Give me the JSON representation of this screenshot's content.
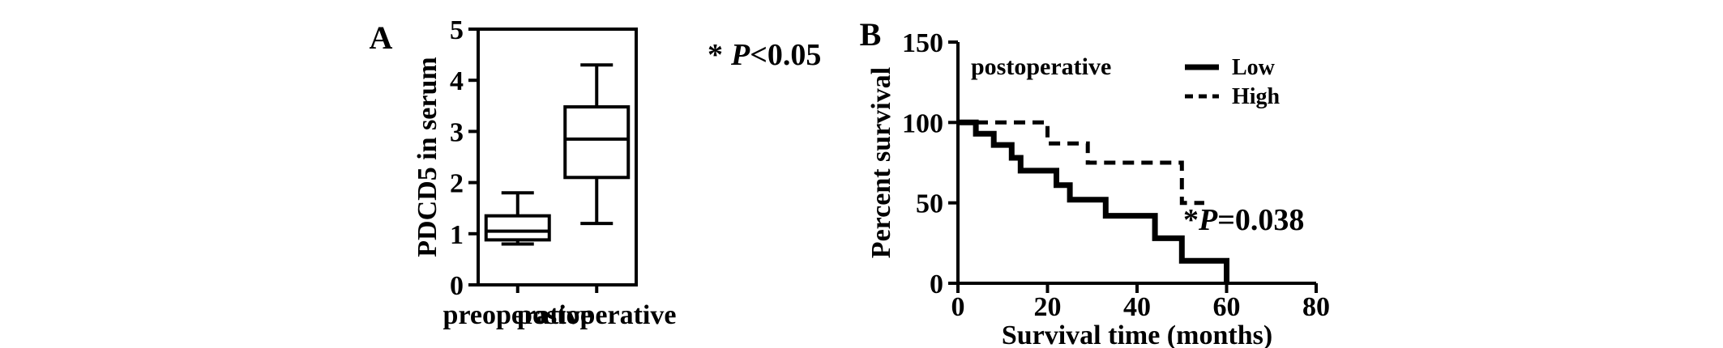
{
  "chart_data": [
    {
      "panel_label": "A",
      "type": "box",
      "ylabel": "PDCD5 in serum",
      "ylim": [
        0,
        5
      ],
      "yticks": [
        "0",
        "1",
        "2",
        "3",
        "4",
        "5"
      ],
      "categories": [
        "preoperative",
        "postoperative"
      ],
      "boxes": [
        {
          "category": "preoperative",
          "whisker_low": 0.8,
          "q1": 0.88,
          "median": 1.05,
          "q3": 1.35,
          "whisker_high": 1.8
        },
        {
          "category": "postoperative",
          "whisker_low": 1.2,
          "q1": 2.1,
          "median": 2.85,
          "q3": 3.48,
          "whisker_high": 4.3
        }
      ],
      "annotation": {
        "star": "*",
        "p_symbol": "P",
        "text": "<0.05"
      }
    },
    {
      "panel_label": "B",
      "type": "line",
      "subtype": "kaplan-meier",
      "note": "postoperative",
      "xlabel": "Survival time (months)",
      "ylabel": "Percent survival",
      "xlim": [
        0,
        80
      ],
      "ylim": [
        0,
        150
      ],
      "xticks": [
        "0",
        "20",
        "40",
        "60",
        "80"
      ],
      "yticks": [
        "0",
        "50",
        "100",
        "150"
      ],
      "legend_position": "top-right",
      "series": [
        {
          "name": "Low",
          "style": "solid",
          "points": [
            [
              0,
              100
            ],
            [
              4,
              100
            ],
            [
              4,
              93
            ],
            [
              8,
              93
            ],
            [
              8,
              86
            ],
            [
              12,
              86
            ],
            [
              12,
              78
            ],
            [
              14,
              78
            ],
            [
              14,
              70
            ],
            [
              22,
              70
            ],
            [
              22,
              61
            ],
            [
              25,
              61
            ],
            [
              25,
              52
            ],
            [
              33,
              52
            ],
            [
              33,
              42
            ],
            [
              44,
              42
            ],
            [
              44,
              28
            ],
            [
              50,
              28
            ],
            [
              50,
              14
            ],
            [
              60,
              14
            ],
            [
              60,
              0
            ]
          ]
        },
        {
          "name": "High",
          "style": "dashed",
          "points": [
            [
              0,
              100
            ],
            [
              20,
              100
            ],
            [
              20,
              87
            ],
            [
              29,
              87
            ],
            [
              29,
              75
            ],
            [
              50,
              75
            ],
            [
              50,
              50
            ],
            [
              55,
              50
            ]
          ]
        }
      ],
      "annotation": {
        "star": "*",
        "p_symbol": "P",
        "text": "=0.038"
      }
    }
  ]
}
